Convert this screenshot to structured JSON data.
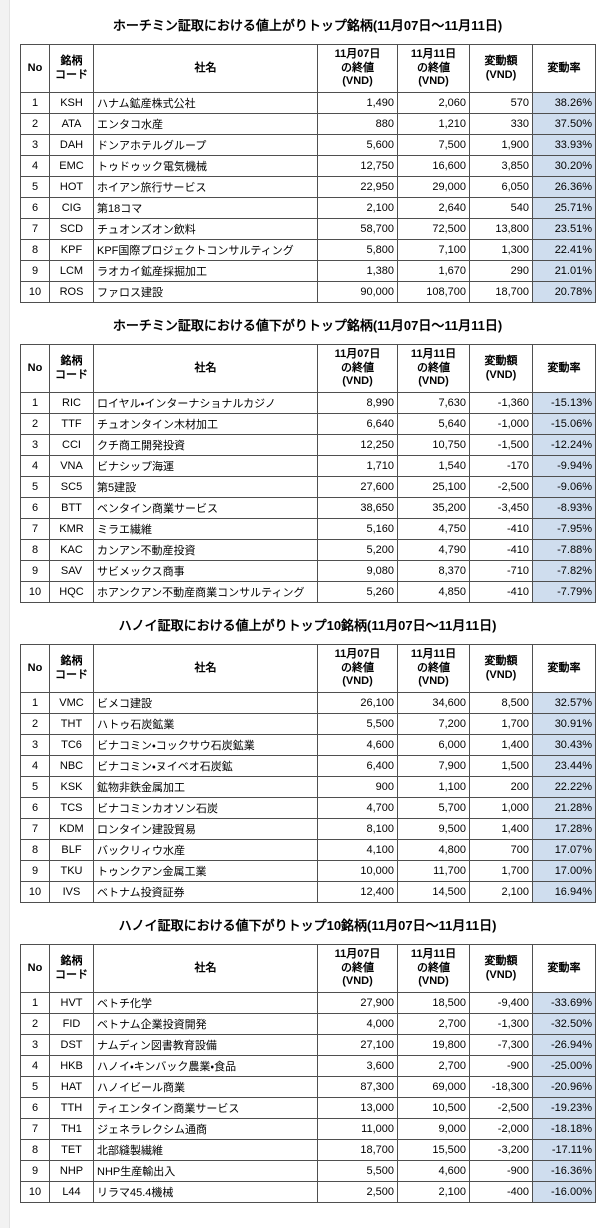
{
  "page": {
    "background": "#ffffff",
    "border_color": "#4f4f4f",
    "rate_header_fill": "#c2d4e8",
    "rate_cell_fill": "#cfddee"
  },
  "columns": [
    {
      "key": "no",
      "label": "No"
    },
    {
      "key": "code",
      "label": "銘柄\nコード"
    },
    {
      "key": "name",
      "label": "社名"
    },
    {
      "key": "close1107",
      "label": "11月07日\nの終値\n(VND)"
    },
    {
      "key": "close1111",
      "label": "11月11日\nの終値\n(VND)"
    },
    {
      "key": "change",
      "label": "変動額\n(VND)"
    },
    {
      "key": "rate",
      "label": "変動率"
    }
  ],
  "tables": [
    {
      "title": "ホーチミン証取における値上がりトップ銘柄(11月07日～11月11日)",
      "rows": [
        [
          "1",
          "KSH",
          "ハナム鉱産株式公社",
          "1,490",
          "2,060",
          "570",
          "38.26%"
        ],
        [
          "2",
          "ATA",
          "エンタコ水産",
          "880",
          "1,210",
          "330",
          "37.50%"
        ],
        [
          "3",
          "DAH",
          "ドンアホテルグループ",
          "5,600",
          "7,500",
          "1,900",
          "33.93%"
        ],
        [
          "4",
          "EMC",
          "トゥドゥック電気機械",
          "12,750",
          "16,600",
          "3,850",
          "30.20%"
        ],
        [
          "5",
          "HOT",
          "ホイアン旅行サービス",
          "22,950",
          "29,000",
          "6,050",
          "26.36%"
        ],
        [
          "6",
          "CIG",
          "第18コマ",
          "2,100",
          "2,640",
          "540",
          "25.71%"
        ],
        [
          "7",
          "SCD",
          "チュオンズオン飲料",
          "58,700",
          "72,500",
          "13,800",
          "23.51%"
        ],
        [
          "8",
          "KPF",
          "KPF国際プロジェクトコンサルティング",
          "5,800",
          "7,100",
          "1,300",
          "22.41%"
        ],
        [
          "9",
          "LCM",
          "ラオカイ鉱産採掘加工",
          "1,380",
          "1,670",
          "290",
          "21.01%"
        ],
        [
          "10",
          "ROS",
          "ファロス建設",
          "90,000",
          "108,700",
          "18,700",
          "20.78%"
        ]
      ]
    },
    {
      "title": "ホーチミン証取における値下がりトップ銘柄(11月07日～11月11日)",
      "rows": [
        [
          "1",
          "RIC",
          "ロイヤル・インターナショナルカジノ",
          "8,990",
          "7,630",
          "-1,360",
          "-15.13%"
        ],
        [
          "2",
          "TTF",
          "チュオンタイン木材加工",
          "6,640",
          "5,640",
          "-1,000",
          "-15.06%"
        ],
        [
          "3",
          "CCI",
          "クチ商工開発投資",
          "12,250",
          "10,750",
          "-1,500",
          "-12.24%"
        ],
        [
          "4",
          "VNA",
          "ビナシップ海運",
          "1,710",
          "1,540",
          "-170",
          "-9.94%"
        ],
        [
          "5",
          "SC5",
          "第5建設",
          "27,600",
          "25,100",
          "-2,500",
          "-9.06%"
        ],
        [
          "6",
          "BTT",
          "ベンタイン商業サービス",
          "38,650",
          "35,200",
          "-3,450",
          "-8.93%"
        ],
        [
          "7",
          "KMR",
          "ミラエ繊維",
          "5,160",
          "4,750",
          "-410",
          "-7.95%"
        ],
        [
          "8",
          "KAC",
          "カンアン不動産投資",
          "5,200",
          "4,790",
          "-410",
          "-7.88%"
        ],
        [
          "9",
          "SAV",
          "サビメックス商事",
          "9,080",
          "8,370",
          "-710",
          "-7.82%"
        ],
        [
          "10",
          "HQC",
          "ホアンクアン不動産商業コンサルティング",
          "5,260",
          "4,850",
          "-410",
          "-7.79%"
        ]
      ]
    },
    {
      "title": "ハノイ証取における値上がりトップ10銘柄(11月07日～11月11日)",
      "rows": [
        [
          "1",
          "VMC",
          "ビメコ建設",
          "26,100",
          "34,600",
          "8,500",
          "32.57%"
        ],
        [
          "2",
          "THT",
          "ハトゥ石炭鉱業",
          "5,500",
          "7,200",
          "1,700",
          "30.91%"
        ],
        [
          "3",
          "TC6",
          "ビナコミン・コックサウ石炭鉱業",
          "4,600",
          "6,000",
          "1,400",
          "30.43%"
        ],
        [
          "4",
          "NBC",
          "ビナコミン・ヌイベオ石炭鉱",
          "6,400",
          "7,900",
          "1,500",
          "23.44%"
        ],
        [
          "5",
          "KSK",
          "鉱物非鉄金属加工",
          "900",
          "1,100",
          "200",
          "22.22%"
        ],
        [
          "6",
          "TCS",
          "ビナコミンカオソン石炭",
          "4,700",
          "5,700",
          "1,000",
          "21.28%"
        ],
        [
          "7",
          "KDM",
          "ロンタイン建設貿易",
          "8,100",
          "9,500",
          "1,400",
          "17.28%"
        ],
        [
          "8",
          "BLF",
          "バックリィウ水産",
          "4,100",
          "4,800",
          "700",
          "17.07%"
        ],
        [
          "9",
          "TKU",
          "トゥンクアン金属工業",
          "10,000",
          "11,700",
          "1,700",
          "17.00%"
        ],
        [
          "10",
          "IVS",
          "ベトナム投資証券",
          "12,400",
          "14,500",
          "2,100",
          "16.94%"
        ]
      ]
    },
    {
      "title": "ハノイ証取における値下がりトップ10銘柄(11月07日～11月11日)",
      "rows": [
        [
          "1",
          "HVT",
          "ベトチ化学",
          "27,900",
          "18,500",
          "-9,400",
          "-33.69%"
        ],
        [
          "2",
          "FID",
          "ベトナム企業投資開発",
          "4,000",
          "2,700",
          "-1,300",
          "-32.50%"
        ],
        [
          "3",
          "DST",
          "ナムディン図書教育設備",
          "27,100",
          "19,800",
          "-7,300",
          "-26.94%"
        ],
        [
          "4",
          "HKB",
          "ハノイ・キンバック農業・食品",
          "3,600",
          "2,700",
          "-900",
          "-25.00%"
        ],
        [
          "5",
          "HAT",
          "ハノイビール商業",
          "87,300",
          "69,000",
          "-18,300",
          "-20.96%"
        ],
        [
          "6",
          "TTH",
          "ティエンタイン商業サービス",
          "13,000",
          "10,500",
          "-2,500",
          "-19.23%"
        ],
        [
          "7",
          "TH1",
          "ジェネラレクシム通商",
          "11,000",
          "9,000",
          "-2,000",
          "-18.18%"
        ],
        [
          "8",
          "TET",
          "北部縫製繊維",
          "18,700",
          "15,500",
          "-3,200",
          "-17.11%"
        ],
        [
          "9",
          "NHP",
          "NHP生産輸出入",
          "5,500",
          "4,600",
          "-900",
          "-16.36%"
        ],
        [
          "10",
          "L44",
          "リラマ45.4機械",
          "2,500",
          "2,100",
          "-400",
          "-16.00%"
        ]
      ]
    }
  ]
}
